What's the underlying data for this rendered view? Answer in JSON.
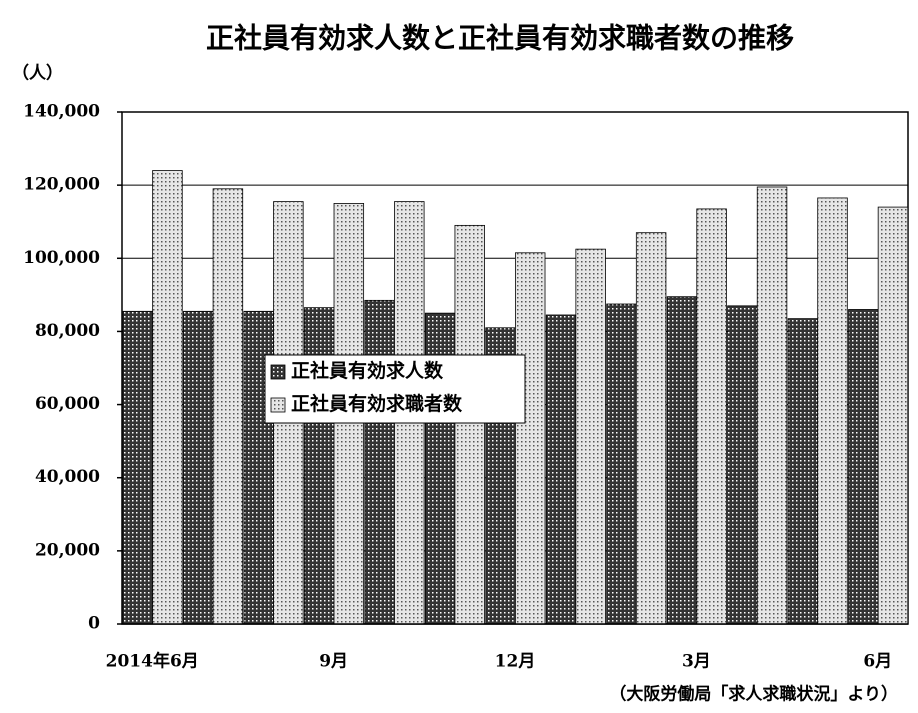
{
  "chart_data": {
    "type": "bar",
    "title": "正社員有効求人数と正社員有効求職者数の推移",
    "y_unit": "（人）",
    "source": "（大阪労働局「求人求職状況」より）",
    "categories": [
      "2014年6月",
      null,
      null,
      "9月",
      null,
      null,
      "12月",
      null,
      null,
      "3月",
      null,
      null,
      "6月"
    ],
    "series": [
      {
        "name": "正社員有効求人数",
        "color": "#333333",
        "values": [
          85500,
          85500,
          85500,
          86500,
          88500,
          85000,
          81000,
          84500,
          87500,
          89500,
          87000,
          83500,
          86000
        ]
      },
      {
        "name": "正社員有効求職者数",
        "color": "#e6e6e6",
        "values": [
          124000,
          119000,
          115500,
          115000,
          115500,
          109000,
          101500,
          102500,
          107000,
          113500,
          119500,
          116500,
          114000
        ]
      }
    ],
    "ylim": [
      0,
      140000
    ],
    "yticks": [
      0,
      {
        "value": 20000,
        "label": "20,000"
      },
      {
        "value": 40000,
        "label": "40,000"
      },
      {
        "value": 60000,
        "label": "60,000"
      },
      {
        "value": 80000,
        "label": "80,000"
      },
      {
        "value": 100000,
        "label": "100,000"
      },
      {
        "value": 120000,
        "label": "120,000"
      },
      {
        "value": 140000,
        "label": "140,000"
      }
    ],
    "grid": true,
    "legend": "center-left"
  }
}
